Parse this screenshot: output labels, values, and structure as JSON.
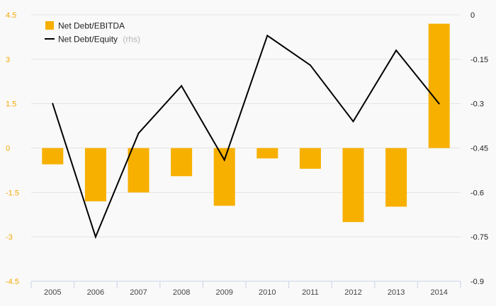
{
  "chart_data": {
    "type": "bar",
    "categories": [
      "2005",
      "2006",
      "2007",
      "2008",
      "2009",
      "2010",
      "2011",
      "2012",
      "2013",
      "2014"
    ],
    "series": [
      {
        "name": "Net Debt/EBITDA",
        "type": "bar",
        "axis": "left",
        "color": "#f7b000",
        "values": [
          -0.55,
          -1.8,
          -1.5,
          -0.95,
          -1.95,
          -0.35,
          -0.7,
          -2.5,
          -1.98,
          4.2
        ]
      },
      {
        "name": "Net Debt/Equity",
        "name_suffix": "(rhs)",
        "type": "line",
        "axis": "right",
        "color": "#000000",
        "values": [
          -0.3,
          -0.75,
          -0.4,
          -0.24,
          -0.49,
          -0.07,
          -0.17,
          -0.36,
          -0.12,
          -0.3
        ]
      }
    ],
    "y_left": {
      "ticks": [
        "4.5",
        "3",
        "1.5",
        "0",
        "-1.5",
        "-3",
        "-4.5"
      ],
      "ylim": [
        -4.5,
        4.5
      ]
    },
    "y_right": {
      "ticks": [
        "0",
        "-0.15",
        "-0.3",
        "-0.45",
        "-0.6",
        "-0.75",
        "-0.9"
      ],
      "ylim": [
        -0.9,
        0
      ]
    },
    "grid": true,
    "legend_position": "top-left",
    "colors": {
      "background": "#f9f9f9",
      "grid": "#e3e3e3",
      "left_ticks": "#f5a800",
      "right_ticks": "#222222",
      "x_ticks": "#444444",
      "axis_line": "#c9d3e6"
    }
  }
}
